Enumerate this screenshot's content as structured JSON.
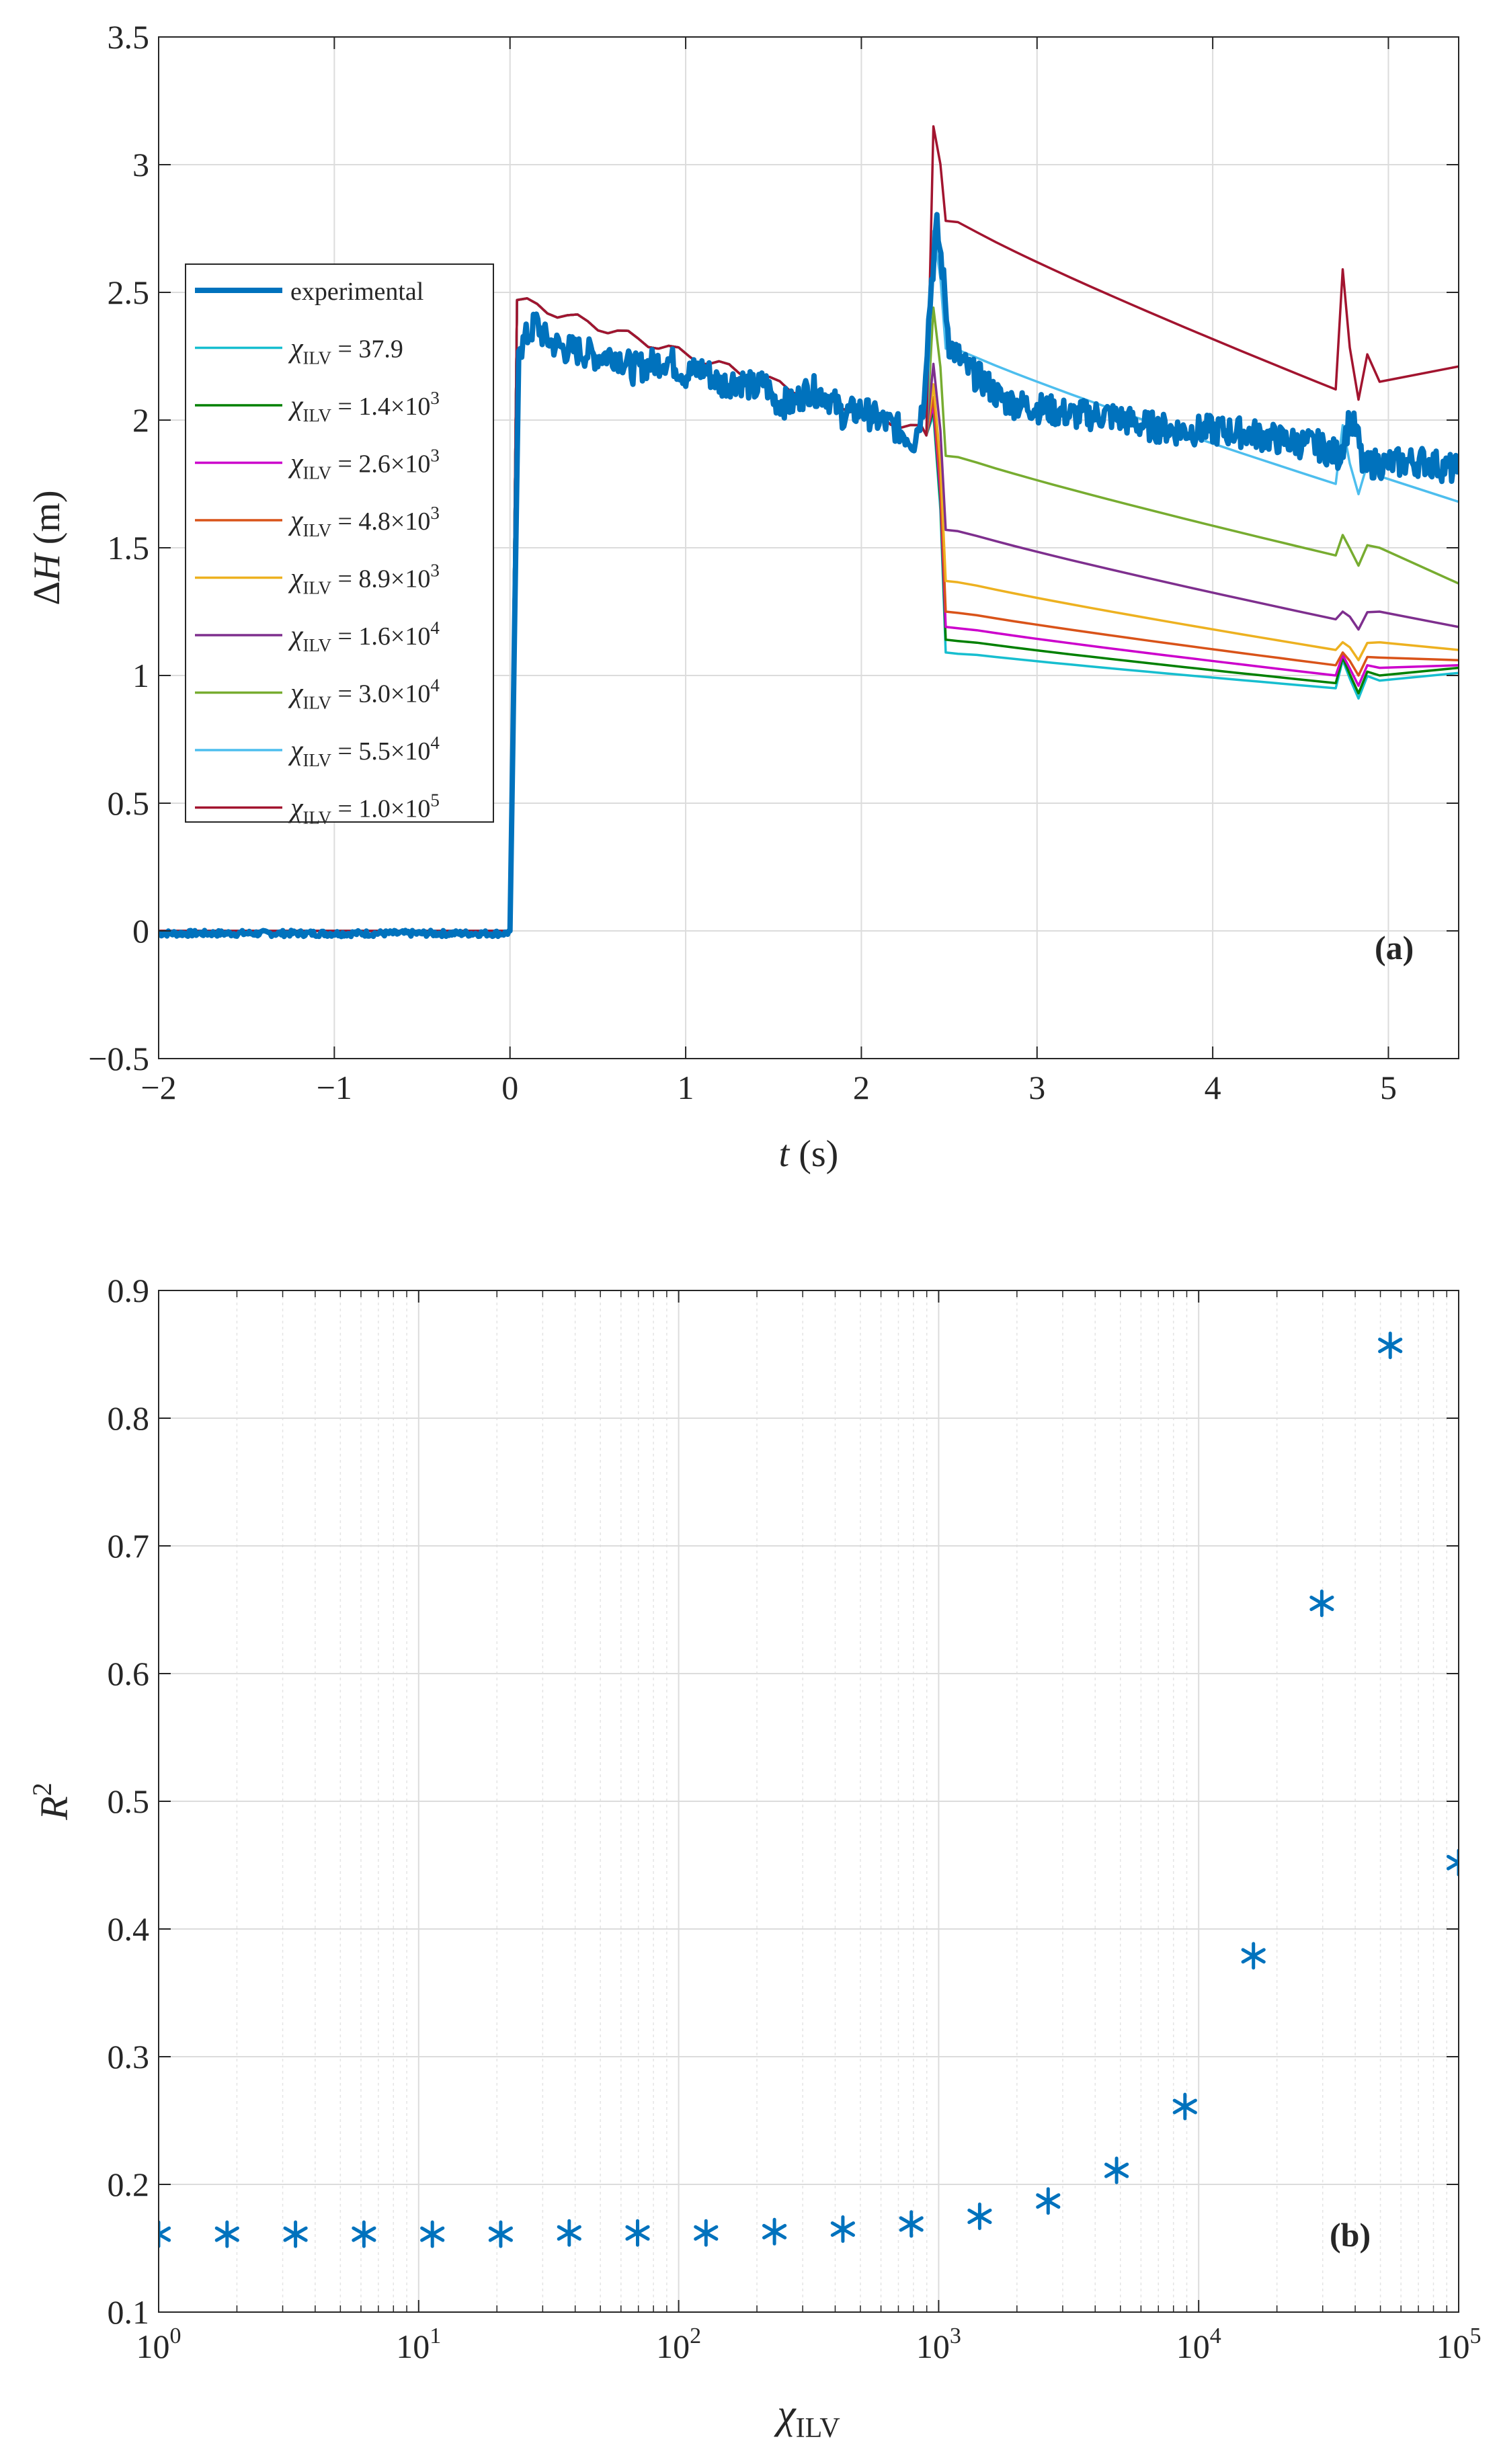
{
  "chart_data": [
    {
      "type": "line",
      "panel_label": "(a)",
      "xlabel": "t (s)",
      "xlabel_var": "t",
      "xlabel_unit": " (s)",
      "ylabel": "ΔH (m)",
      "ylabel_delta": "Δ",
      "ylabel_var": "H",
      "ylabel_unit": " (m)",
      "xlim": [
        -2,
        5.4
      ],
      "ylim": [
        -0.5,
        3.5
      ],
      "xticks": [
        -2,
        -1,
        0,
        1,
        2,
        3,
        4,
        5
      ],
      "xtick_labels": [
        "−2",
        "−1",
        "0",
        "1",
        "2",
        "3",
        "4",
        "5"
      ],
      "yticks": [
        -0.5,
        0,
        0.5,
        1,
        1.5,
        2,
        2.5,
        3,
        3.5
      ],
      "ytick_labels": [
        "−0.5",
        "0",
        "0.5",
        "1",
        "1.5",
        "2",
        "2.5",
        "3",
        "3.5"
      ],
      "grid": true,
      "legend_position": "upper-left",
      "experimental": {
        "name": "experimental",
        "color": "#0072BD",
        "points": [
          [
            -2,
            -0.01
          ],
          [
            -1.5,
            -0.01
          ],
          [
            -1,
            -0.01
          ],
          [
            -0.5,
            -0.01
          ],
          [
            -0.02,
            -0.01
          ],
          [
            0.0,
            0.0
          ],
          [
            0.05,
            2.27
          ],
          [
            0.1,
            2.33
          ],
          [
            0.15,
            2.38
          ],
          [
            0.2,
            2.32
          ],
          [
            0.3,
            2.28
          ],
          [
            0.4,
            2.27
          ],
          [
            0.5,
            2.25
          ],
          [
            0.6,
            2.26
          ],
          [
            0.7,
            2.2
          ],
          [
            0.8,
            2.22
          ],
          [
            0.9,
            2.24
          ],
          [
            1.0,
            2.18
          ],
          [
            1.1,
            2.2
          ],
          [
            1.2,
            2.14
          ],
          [
            1.3,
            2.16
          ],
          [
            1.4,
            2.12
          ],
          [
            1.45,
            2.15
          ],
          [
            1.5,
            2.08
          ],
          [
            1.6,
            2.06
          ],
          [
            1.7,
            2.12
          ],
          [
            1.8,
            2.1
          ],
          [
            1.9,
            2.02
          ],
          [
            2.0,
            2.04
          ],
          [
            2.1,
            2.0
          ],
          [
            2.2,
            1.97
          ],
          [
            2.3,
            1.92
          ],
          [
            2.35,
            2.05
          ],
          [
            2.4,
            2.55
          ],
          [
            2.43,
            2.75
          ],
          [
            2.46,
            2.6
          ],
          [
            2.5,
            2.3
          ],
          [
            2.6,
            2.2
          ],
          [
            2.7,
            2.15
          ],
          [
            2.8,
            2.08
          ],
          [
            2.9,
            2.06
          ],
          [
            3.0,
            2.05
          ],
          [
            3.2,
            2.02
          ],
          [
            3.4,
            2.02
          ],
          [
            3.6,
            1.98
          ],
          [
            3.8,
            1.96
          ],
          [
            4.0,
            1.96
          ],
          [
            4.2,
            1.95
          ],
          [
            4.4,
            1.92
          ],
          [
            4.6,
            1.9
          ],
          [
            4.72,
            1.86
          ],
          [
            4.78,
            2.0
          ],
          [
            4.82,
            1.95
          ],
          [
            4.86,
            1.8
          ],
          [
            4.9,
            1.83
          ],
          [
            5.0,
            1.83
          ],
          [
            5.2,
            1.84
          ],
          [
            5.4,
            1.8
          ]
        ]
      },
      "series": [
        {
          "name": "χILV = 37.9",
          "sym": "χ",
          "sub": "ILV",
          "val": " = 37.9",
          "exp": "",
          "color": "#17BECF",
          "pre_end": 1.96,
          "peak": 2.02,
          "drop": 1.09,
          "end_pre_surge": 0.95,
          "surge": 1.06,
          "end": 1.01
        },
        {
          "name": "χILV = 1.4×10^3",
          "sym": "χ",
          "sub": "ILV",
          "val": " = 1.4×10",
          "exp": "3",
          "color": "#008000",
          "pre_end": 1.96,
          "peak": 2.04,
          "drop": 1.14,
          "end_pre_surge": 0.97,
          "surge": 1.07,
          "end": 1.03
        },
        {
          "name": "χILV = 2.6×10^3",
          "sym": "χ",
          "sub": "ILV",
          "val": " = 2.6×10",
          "exp": "3",
          "color": "#CC00CC",
          "pre_end": 1.96,
          "peak": 2.06,
          "drop": 1.19,
          "end_pre_surge": 1.0,
          "surge": 1.08,
          "end": 1.04
        },
        {
          "name": "χILV = 4.8×10^3",
          "sym": "χ",
          "sub": "ILV",
          "val": " = 4.8×10",
          "exp": "3",
          "color": "#D95319",
          "pre_end": 1.96,
          "peak": 2.09,
          "drop": 1.25,
          "end_pre_surge": 1.04,
          "surge": 1.09,
          "end": 1.06
        },
        {
          "name": "χILV = 8.9×10^3",
          "sym": "χ",
          "sub": "ILV",
          "val": " = 8.9×10",
          "exp": "3",
          "color": "#EDB120",
          "pre_end": 1.96,
          "peak": 2.14,
          "drop": 1.37,
          "end_pre_surge": 1.1,
          "surge": 1.13,
          "end": 1.1
        },
        {
          "name": "χILV = 1.6×10^4",
          "sym": "χ",
          "sub": "ILV",
          "val": " = 1.6×10",
          "exp": "4",
          "color": "#7E2F8E",
          "pre_end": 1.96,
          "peak": 2.22,
          "drop": 1.57,
          "end_pre_surge": 1.22,
          "surge": 1.25,
          "end": 1.19
        },
        {
          "name": "χILV = 3.0×10^4",
          "sym": "χ",
          "sub": "ILV",
          "val": " = 3.0×10",
          "exp": "4",
          "color": "#77AC30",
          "pre_end": 1.96,
          "peak": 2.44,
          "drop": 1.86,
          "end_pre_surge": 1.47,
          "surge": 1.55,
          "end": 1.36
        },
        {
          "name": "χILV = 5.5×10^4",
          "sym": "χ",
          "sub": "ILV",
          "val": " = 5.5×10",
          "exp": "4",
          "color": "#4DBEEE",
          "pre_end": 1.96,
          "peak": 2.74,
          "drop": 2.28,
          "end_pre_surge": 1.75,
          "surge": 1.98,
          "end": 1.68
        },
        {
          "name": "χILV = 1.0×10^5",
          "sym": "χ",
          "sub": "ILV",
          "val": " = 1.0×10",
          "exp": "5",
          "color": "#A2142F",
          "pre_end": 1.96,
          "peak": 3.15,
          "drop": 2.78,
          "end_pre_surge": 2.12,
          "surge": 2.59,
          "end": 2.21
        }
      ]
    },
    {
      "type": "scatter",
      "panel_label": "(b)",
      "xscale": "log",
      "xlabel": "χILV",
      "xlabel_sym": "χ",
      "xlabel_sub": "ILV",
      "ylabel": "R^2",
      "ylabel_var": "R",
      "ylabel_exp": "2",
      "xlim": [
        1,
        100000
      ],
      "ylim": [
        0.1,
        0.9
      ],
      "xticks": [
        1,
        10,
        100,
        1000,
        10000,
        100000
      ],
      "xtick_labels": [
        {
          "base": "10",
          "exp": "0"
        },
        {
          "base": "10",
          "exp": "1"
        },
        {
          "base": "10",
          "exp": "2"
        },
        {
          "base": "10",
          "exp": "3"
        },
        {
          "base": "10",
          "exp": "4"
        },
        {
          "base": "10",
          "exp": "5"
        }
      ],
      "yticks": [
        0.1,
        0.2,
        0.3,
        0.4,
        0.5,
        0.6,
        0.7,
        0.8,
        0.9
      ],
      "ytick_labels": [
        "0.1",
        "0.2",
        "0.3",
        "0.4",
        "0.5",
        "0.6",
        "0.7",
        "0.8",
        "0.9"
      ],
      "grid": true,
      "marker": "*",
      "color": "#0072BD",
      "x": [
        1,
        1.833,
        3.36,
        6.16,
        11.29,
        20.69,
        37.93,
        69.52,
        127.4,
        233.6,
        428.1,
        784.8,
        1438,
        2637,
        4833,
        8859,
        16240,
        29760,
        54550,
        100000
      ],
      "y": [
        0.161,
        0.161,
        0.161,
        0.161,
        0.161,
        0.161,
        0.162,
        0.162,
        0.162,
        0.163,
        0.165,
        0.169,
        0.175,
        0.187,
        0.211,
        0.261,
        0.379,
        0.655,
        0.857,
        0.452
      ]
    }
  ]
}
